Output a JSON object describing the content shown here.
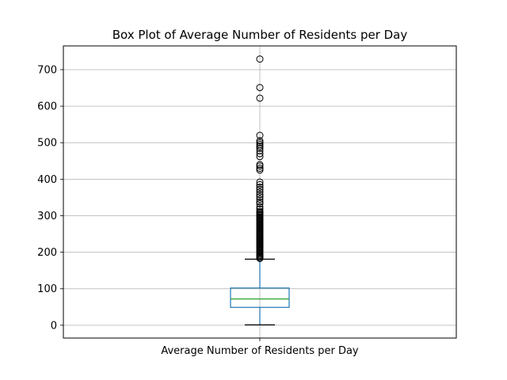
{
  "chart_data": {
    "type": "box",
    "title": "Box Plot of Average Number of Residents per Day",
    "categories": [
      "Average Number of Residents per Day"
    ],
    "xlabel": "",
    "ylabel": "",
    "ylim": [
      -35,
      765
    ],
    "yticks": [
      0,
      100,
      200,
      300,
      400,
      500,
      600,
      700
    ],
    "grid": true,
    "box": {
      "whisker_low": 1,
      "q1": 49,
      "median": 72,
      "q3": 102,
      "whisker_high": 181
    },
    "outliers": [
      183,
      186,
      189,
      192,
      195,
      198,
      201,
      204,
      207,
      210,
      213,
      216,
      219,
      222,
      225,
      228,
      231,
      234,
      237,
      240,
      243,
      246,
      249,
      252,
      255,
      258,
      261,
      264,
      267,
      270,
      273,
      276,
      279,
      282,
      285,
      288,
      291,
      294,
      297,
      300,
      303,
      306,
      309,
      312,
      318,
      325,
      333,
      338,
      345,
      352,
      358,
      365,
      372,
      378,
      385,
      392,
      425,
      430,
      436,
      440,
      462,
      470,
      478,
      485,
      490,
      495,
      500,
      505,
      520,
      622,
      651,
      729
    ],
    "colors": {
      "box": "#1f77b4",
      "median": "#2ca02c",
      "whisker_cap": "#000000",
      "outlier": "#000000",
      "grid": "#b0b0b0"
    }
  }
}
